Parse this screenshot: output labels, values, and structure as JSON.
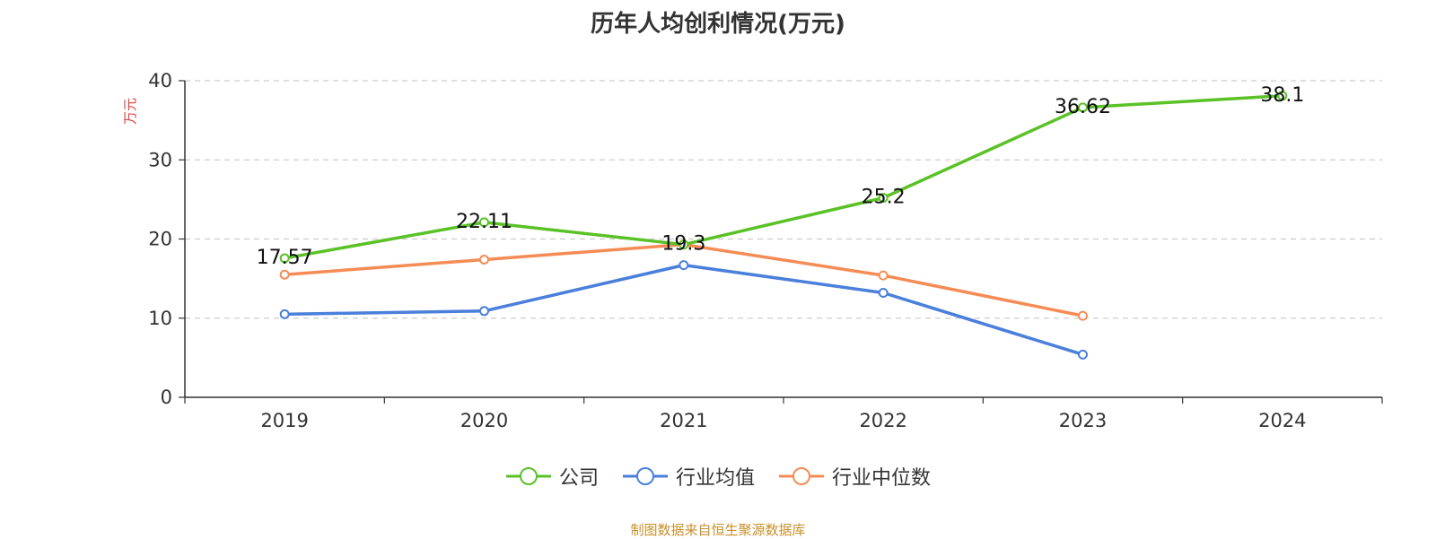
{
  "chart_data": {
    "type": "line",
    "title": "历年人均创利情况(万元)",
    "ylabel": "万元",
    "xlabel": "",
    "ylim": [
      0,
      40
    ],
    "yticks": [
      0,
      10,
      20,
      30,
      40
    ],
    "categories": [
      "2019",
      "2020",
      "2021",
      "2022",
      "2023",
      "2024"
    ],
    "grid": "horizontal-dashed",
    "legend_position": "bottom",
    "series": [
      {
        "name": "公司",
        "color": "#5ac227",
        "values": [
          17.57,
          22.11,
          19.3,
          25.2,
          36.62,
          38.1
        ],
        "labels": [
          "17.57",
          "22.11",
          "19.3",
          "25.2",
          "36.62",
          "38.1"
        ]
      },
      {
        "name": "行业均值",
        "color": "#4a7fdb",
        "values": [
          10.5,
          10.9,
          16.7,
          13.2,
          5.4,
          null
        ]
      },
      {
        "name": "行业中位数",
        "color": "#f58c55",
        "values": [
          15.5,
          17.4,
          19.3,
          15.4,
          10.3,
          null
        ]
      }
    ]
  },
  "source": {
    "text": "制图数据来自恒生聚源数据库",
    "color": "#c8902a"
  },
  "ylabel_color": "#e03a3a"
}
